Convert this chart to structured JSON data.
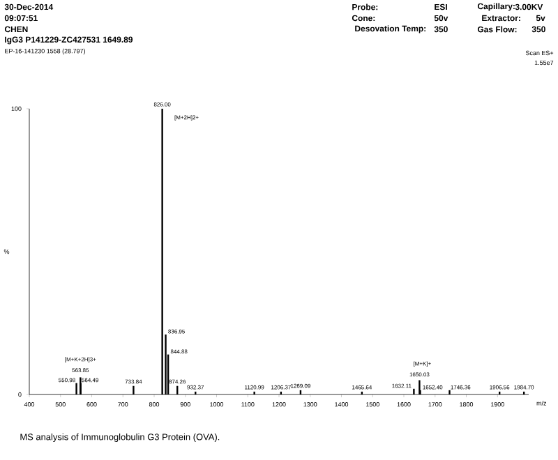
{
  "chart_data": {
    "type": "bar",
    "xlabel": "m/z",
    "ylabel": "%",
    "x": [
      550.98,
      563.85,
      564.49,
      733.84,
      826.0,
      836.95,
      844.88,
      874.26,
      932.37,
      1120.99,
      1206.37,
      1269.09,
      1465.64,
      1632.11,
      1650.03,
      1652.4,
      1746.36,
      1906.56,
      1984.7
    ],
    "values": [
      4,
      6,
      4,
      3,
      100,
      21,
      14,
      3,
      1,
      1,
      1,
      1.5,
      1,
      2,
      5,
      1.5,
      1.5,
      1,
      1
    ],
    "color": "#000000",
    "xlim": [
      400,
      2000
    ],
    "xticks": [
      400,
      500,
      600,
      700,
      800,
      900,
      1000,
      1100,
      1200,
      1300,
      1400,
      1500,
      1600,
      1700,
      1800,
      1900
    ],
    "ylim": [
      0,
      100
    ],
    "yticks": [
      0,
      100
    ],
    "annotations": [
      "30-Dec-2014",
      "09:07:51",
      "CHEN",
      "IgG3  P141229-ZC427531  1649.89",
      "EP-16-141230 1558 (28.797)",
      "Probe:",
      "ESI",
      "Cone:",
      "50v",
      "Desovation Temp:",
      "350",
      "Capillary:",
      "3.00KV",
      "Extractor:",
      "5v",
      "Gas Flow:",
      "350",
      "Scan ES+",
      "1.55e7",
      "MS analysis of Immunoglobulin G3 Protein (OVA).",
      {
        "text": "550.98",
        "x": 550.98,
        "y": 4
      },
      {
        "text": "563.85",
        "x": 563.85,
        "y": 6
      },
      {
        "text": "564.49",
        "x": 564.49,
        "y": 4
      },
      {
        "text": "[M+K+2H]3+",
        "x": 563.85,
        "y": 6
      },
      {
        "text": "733.84",
        "x": 733.84,
        "y": 3
      },
      {
        "text": "826.00",
        "x": 826.0,
        "y": 100
      },
      {
        "text": "[M+2H]2+",
        "x": 826.0,
        "y": 100
      },
      {
        "text": "836.95",
        "x": 836.95,
        "y": 21
      },
      {
        "text": "844.88",
        "x": 844.88,
        "y": 14
      },
      {
        "text": "874.26",
        "x": 874.26,
        "y": 3
      },
      {
        "text": "932.37",
        "x": 932.37,
        "y": 1
      },
      {
        "text": "1120.99",
        "x": 1120.99,
        "y": 1
      },
      {
        "text": "1206.37",
        "x": 1206.37,
        "y": 1
      },
      {
        "text": "1269.09",
        "x": 1269.09,
        "y": 1.5
      },
      {
        "text": "1465.64",
        "x": 1465.64,
        "y": 1
      },
      {
        "text": "1632.11",
        "x": 1632.11,
        "y": 2
      },
      {
        "text": "1650.03",
        "x": 1650.03,
        "y": 5
      },
      {
        "text": "[M+K]+",
        "x": 1650.03,
        "y": 5
      },
      {
        "text": "1652.40",
        "x": 1652.4,
        "y": 1.5
      },
      {
        "text": "1746.36",
        "x": 1746.36,
        "y": 1.5
      },
      {
        "text": "1906.56",
        "x": 1906.56,
        "y": 1
      },
      {
        "text": "1984.70",
        "x": 1984.7,
        "y": 1
      }
    ]
  }
}
